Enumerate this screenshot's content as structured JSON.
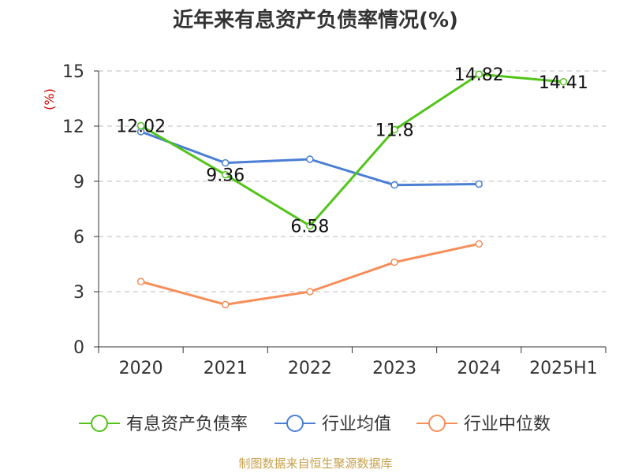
{
  "chart_data": {
    "type": "line",
    "title": "近年来有息资产负债率情况(%)",
    "ylabel": "(%)",
    "xlabel": "",
    "categories": [
      "2020",
      "2021",
      "2022",
      "2023",
      "2024",
      "2025H1"
    ],
    "ylim": [
      0,
      15
    ],
    "yticks": [
      0,
      3,
      6,
      9,
      12,
      15
    ],
    "grid": true,
    "legend_position": "bottom",
    "series": [
      {
        "name": "有息资产负债率",
        "color": "#52c41a",
        "values": [
          12.02,
          9.36,
          6.58,
          11.8,
          14.82,
          14.41
        ],
        "labels": [
          "12.02",
          "9.36",
          "6.58",
          "11.8",
          "14.82",
          "14.41"
        ]
      },
      {
        "name": "行业均值",
        "color": "#4a7fd4",
        "values": [
          11.7,
          10.0,
          10.2,
          8.8,
          8.85,
          null
        ]
      },
      {
        "name": "行业中位数",
        "color": "#f78d58",
        "values": [
          3.55,
          2.3,
          3.0,
          4.6,
          5.6,
          null
        ]
      }
    ],
    "source": "制图数据来自恒生聚源数据库"
  }
}
